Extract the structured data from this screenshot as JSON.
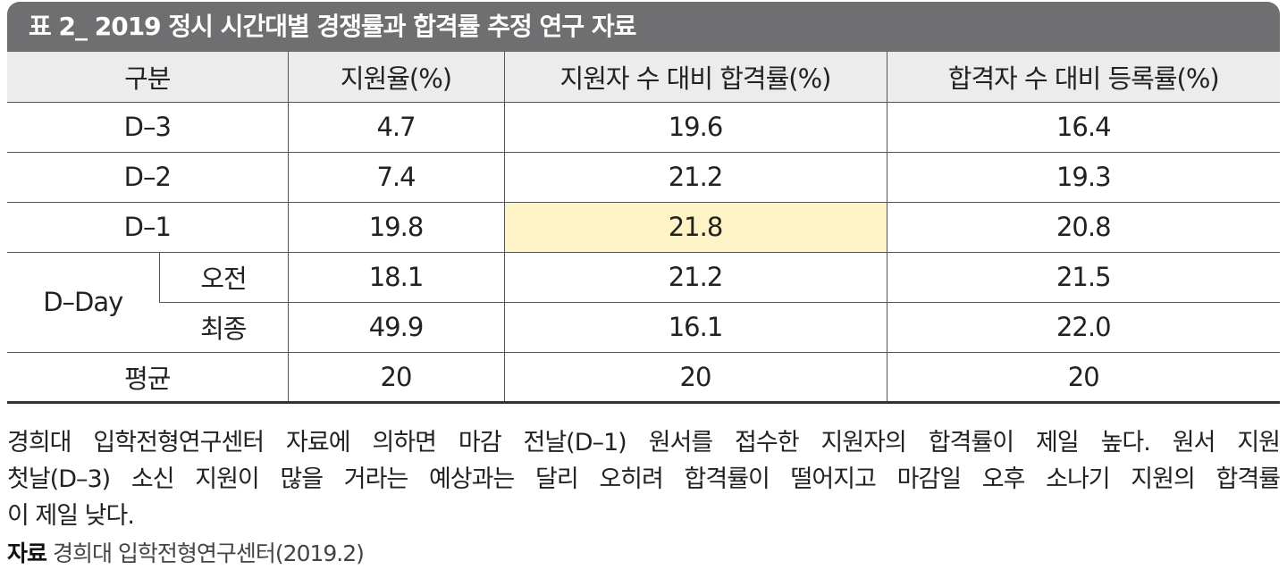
{
  "title": "표 2_ 2019 정시 시간대별 경쟁률과 합격률 추정 연구 자료",
  "table": {
    "header": [
      "구분",
      "지원율(%)",
      "지원자 수 대비 합격률(%)",
      "합격자 수 대비 등록률(%)"
    ],
    "rows": [
      {
        "label": "D–3",
        "values": [
          "4.7",
          "19.6",
          "16.4"
        ]
      },
      {
        "label": "D–2",
        "values": [
          "7.4",
          "21.2",
          "19.3"
        ]
      },
      {
        "label": "D–1",
        "values": [
          "19.8",
          "21.8",
          "20.8"
        ]
      },
      {
        "group": "D–Day",
        "label": "오전",
        "values": [
          "18.1",
          "21.2",
          "21.5"
        ]
      },
      {
        "label": "최종",
        "values": [
          "49.9",
          "16.1",
          "22.0"
        ]
      },
      {
        "label": "평균",
        "values": [
          "20",
          "20",
          "20"
        ]
      }
    ]
  },
  "caption": [
    "경희대 입학전형연구센터 자료에 의하면 마감 전날(D–1) 원서를 접수한 지원자의 합격률이 제일 높다. 원서 지원",
    "첫날(D–3) 소신 지원이 많을 거라는 예상과는 달리 오히려 합격률이 떨어지고 마감일 오후 소나기 지원의 합격률",
    "이 제일 낮다."
  ],
  "source": {
    "label": "자료",
    "text": "경희대 입학전형연구센터(2019.2)"
  }
}
